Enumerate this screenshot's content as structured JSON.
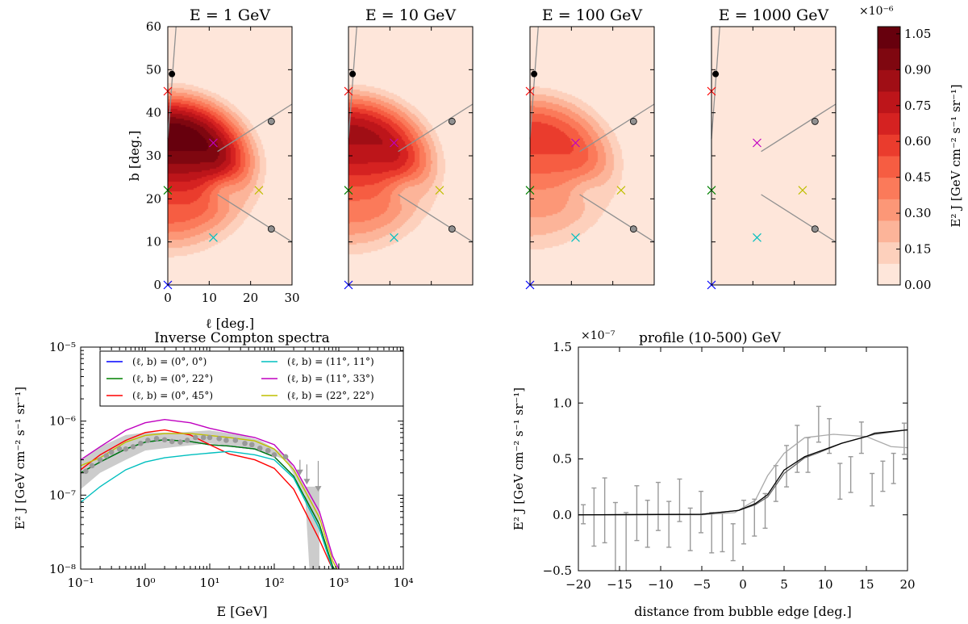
{
  "chart_data": [
    {
      "type": "heatmap",
      "panels": [
        {
          "title": "E = 1 GeV",
          "peak": 1.08
        },
        {
          "title": "E = 10 GeV",
          "peak": 0.86
        },
        {
          "title": "E = 100 GeV",
          "peak": 0.6
        },
        {
          "title": "E = 1000 GeV",
          "peak": 0.02
        }
      ],
      "xlabel": "ℓ [deg.]",
      "ylabel": "b [deg.]",
      "xlim": [
        0,
        30
      ],
      "ylim": [
        0,
        60
      ],
      "xticks": [
        "0",
        "10",
        "20",
        "30"
      ],
      "yticks": [
        "0",
        "10",
        "20",
        "30",
        "40",
        "50",
        "60"
      ],
      "colorbar": {
        "label": "E² J [GeV cm⁻² s⁻¹ sr⁻¹]",
        "multiplier": "×10⁻⁶",
        "ticks": [
          "0.00",
          "0.15",
          "0.30",
          "0.45",
          "0.60",
          "0.75",
          "0.90",
          "1.05"
        ],
        "range": [
          0,
          1.08
        ],
        "colormap": [
          "#fee6da",
          "#fdd0bc",
          "#fcb499",
          "#fc9777",
          "#fb7a5a",
          "#f65d42",
          "#ea3c2d",
          "#d52221",
          "#bd151a",
          "#a00e15",
          "#7f0710",
          "#67000d"
        ]
      },
      "markers": [
        {
          "l": 1,
          "b": 49,
          "kind": "dot",
          "color": "#000000"
        },
        {
          "l": 25,
          "b": 38,
          "kind": "circle",
          "color": "#808080"
        },
        {
          "l": 25,
          "b": 13,
          "kind": "circle",
          "color": "#808080"
        },
        {
          "l": 11,
          "b": 33,
          "kind": "cross",
          "color": "#c000c0"
        },
        {
          "l": 0,
          "b": 22,
          "kind": "cross",
          "color": "#008000"
        },
        {
          "l": 22,
          "b": 22,
          "kind": "cross",
          "color": "#bfbf00"
        },
        {
          "l": 11,
          "b": 11,
          "kind": "cross",
          "color": "#00bfbf"
        },
        {
          "l": 0,
          "b": 45,
          "kind": "cross",
          "color": "#ff0000"
        },
        {
          "l": 0,
          "b": 0,
          "kind": "cross",
          "color": "#0000ff"
        }
      ],
      "lines": [
        [
          [
            0,
            34
          ],
          [
            2,
            60
          ]
        ],
        [
          [
            12,
            31
          ],
          [
            30,
            42
          ]
        ],
        [
          [
            12,
            21
          ],
          [
            30,
            10
          ]
        ]
      ]
    },
    {
      "type": "line",
      "title": "Inverse Compton spectra",
      "xlabel": "E [GeV]",
      "ylabel": "E² J [GeV cm⁻² s⁻¹ sr⁻¹]",
      "xscale": "log",
      "yscale": "log",
      "xlim": [
        0.1,
        10000
      ],
      "ylim": [
        1e-08,
        1e-05
      ],
      "xticks": [
        "10⁻¹",
        "10⁰",
        "10¹",
        "10²",
        "10³",
        "10⁴"
      ],
      "yticks": [
        "10⁻⁸",
        "10⁻⁷",
        "10⁻⁶",
        "10⁻⁵"
      ],
      "legend_position": "top",
      "x": [
        0.1,
        0.2,
        0.5,
        1,
        2,
        5,
        10,
        20,
        50,
        100,
        200,
        500,
        800,
        1000
      ],
      "series": [
        {
          "name": "(ℓ, b) = (0°, 0°)",
          "color": "#0000ff",
          "values": [
            2e-07,
            2.8e-07,
            4.2e-07,
            5.2e-07,
            5.6e-07,
            5.3e-07,
            4.8e-07,
            4.6e-07,
            4.2e-07,
            3.3e-07,
            1.8e-07,
            4e-08,
            1.1e-08,
            8e-09
          ]
        },
        {
          "name": "(ℓ, b) = (0°, 22°)",
          "color": "#008000",
          "values": [
            2e-07,
            2.8e-07,
            4.2e-07,
            5.2e-07,
            5.6e-07,
            5.3e-07,
            4.8e-07,
            4.6e-07,
            4.2e-07,
            3.3e-07,
            1.8e-07,
            4e-08,
            1.1e-08,
            8e-09
          ]
        },
        {
          "name": "(ℓ, b) = (0°, 45°)",
          "color": "#ff0000",
          "values": [
            2.2e-07,
            3.5e-07,
            5.5e-07,
            7e-07,
            7.6e-07,
            6.5e-07,
            4.8e-07,
            3.6e-07,
            3e-07,
            2.3e-07,
            1.2e-07,
            2.5e-08,
            1e-08,
            7e-09
          ]
        },
        {
          "name": "(ℓ, b) = (11°, 11°)",
          "color": "#00bfbf",
          "values": [
            8e-08,
            1.3e-07,
            2.2e-07,
            2.8e-07,
            3.2e-07,
            3.5e-07,
            3.7e-07,
            3.9e-07,
            3.5e-07,
            3e-07,
            1.7e-07,
            3.5e-08,
            1e-08,
            7e-09
          ]
        },
        {
          "name": "(ℓ, b) = (11°, 33°)",
          "color": "#c000c0",
          "values": [
            3e-07,
            4.5e-07,
            7.5e-07,
            9.5e-07,
            1.05e-06,
            9.5e-07,
            8e-07,
            7e-07,
            6e-07,
            4.8e-07,
            2.5e-07,
            6e-08,
            1.5e-08,
            1e-08
          ]
        },
        {
          "name": "(ℓ, b) = (22°, 22°)",
          "color": "#bfbf00",
          "values": [
            2.5e-07,
            3.2e-07,
            5.2e-07,
            6.4e-07,
            6.8e-07,
            6.8e-07,
            6.4e-07,
            6e-07,
            5.4e-07,
            4.2e-07,
            2.2e-07,
            5e-08,
            1.3e-08,
            9e-09
          ]
        }
      ],
      "data_points": {
        "color": "#999999",
        "x": [
          0.12,
          0.15,
          0.2,
          0.25,
          0.3,
          0.4,
          0.5,
          0.65,
          0.85,
          1.1,
          1.5,
          2,
          2.6,
          3.5,
          4.5,
          6,
          8,
          10,
          14,
          18,
          25,
          35,
          45,
          60,
          80,
          100,
          150
        ],
        "y": [
          2.1e-07,
          2.5e-07,
          3e-07,
          3.4e-07,
          3.8e-07,
          4.2e-07,
          4.2e-07,
          4.5e-07,
          5e-07,
          5.5e-07,
          5.8e-07,
          5.6e-07,
          5.3e-07,
          5.2e-07,
          5.5e-07,
          6e-07,
          6e-07,
          6e-07,
          5.8e-07,
          5.5e-07,
          5.5e-07,
          5e-07,
          4.8e-07,
          4.3e-07,
          4e-07,
          3.5e-07,
          3.3e-07
        ],
        "upper_limits": [
          {
            "x": 250,
            "y": 2e-07,
            "top": 3e-07
          },
          {
            "x": 320,
            "y": 1.5e-07,
            "top": 2.6e-07
          },
          {
            "x": 480,
            "y": 1.2e-07,
            "top": 2.9e-07
          }
        ],
        "band_x": [
          0.1,
          0.2,
          0.5,
          1,
          3,
          10,
          30,
          60,
          150,
          300,
          350,
          500
        ],
        "band_low": [
          1.2e-07,
          2e-07,
          3e-07,
          4e-07,
          4.5e-07,
          5e-07,
          4.5e-07,
          4e-07,
          3e-07,
          1e-07,
          1e-08,
          1e-08
        ],
        "band_high": [
          3e-07,
          4.5e-07,
          6.5e-07,
          7e-07,
          7e-07,
          7.5e-07,
          6.5e-07,
          5.5e-07,
          3.5e-07,
          1.3e-07,
          1.3e-07,
          1.3e-07
        ]
      }
    },
    {
      "type": "line",
      "title": "profile (10-500) GeV",
      "multiplier": "×10⁻⁷",
      "xlabel": "distance from bubble edge [deg.]",
      "ylabel": "E² J [GeV cm⁻² s⁻¹ sr⁻¹]",
      "xlim": [
        -20,
        20
      ],
      "ylim": [
        -0.5,
        1.5
      ],
      "xticks": [
        "−20",
        "−15",
        "−10",
        "−5",
        "0",
        "5",
        "10",
        "15",
        "20"
      ],
      "yticks": [
        "−0.5",
        "0.0",
        "0.5",
        "1.0",
        "1.5"
      ],
      "series": [
        {
          "color": "#aaaaaa",
          "x": [
            -20,
            -5,
            -1,
            1.5,
            3,
            5,
            7.5,
            11,
            15,
            18,
            20
          ],
          "values": [
            0,
            0,
            0.02,
            0.13,
            0.35,
            0.55,
            0.69,
            0.72,
            0.7,
            0.61,
            0.6
          ]
        },
        {
          "color": "#666666",
          "x": [
            -20,
            -5,
            -0.5,
            1.5,
            3,
            5,
            7.5,
            9,
            12,
            15,
            16,
            20
          ],
          "values": [
            0,
            0.005,
            0.04,
            0.09,
            0.16,
            0.37,
            0.51,
            0.55,
            0.64,
            0.7,
            0.72,
            0.76
          ]
        },
        {
          "color": "#000000",
          "x": [
            -20,
            -5,
            -0.5,
            1.5,
            3,
            5,
            7.5,
            9,
            12,
            15,
            16,
            20
          ],
          "values": [
            0,
            0.005,
            0.04,
            0.1,
            0.18,
            0.4,
            0.52,
            0.56,
            0.64,
            0.7,
            0.73,
            0.76
          ]
        }
      ],
      "errorbars": {
        "color": "#999999",
        "x": [
          -19.4,
          -18.1,
          -16.8,
          -15.5,
          -14.2,
          -12.9,
          -11.6,
          -10.3,
          -9.0,
          -7.7,
          -6.4,
          -5.1,
          -3.8,
          -2.5,
          -1.2,
          0.1,
          1.4,
          2.7,
          4.0,
          5.3,
          6.6,
          7.9,
          9.2,
          10.5,
          11.8,
          13.1,
          14.4,
          15.7,
          17.0,
          18.3,
          19.6
        ],
        "low": [
          -0.08,
          -0.28,
          -0.25,
          -0.8,
          -0.8,
          -0.23,
          -0.29,
          -0.14,
          -0.29,
          -0.06,
          -0.32,
          -0.16,
          -0.34,
          -0.33,
          -0.41,
          -0.26,
          -0.19,
          -0.12,
          0.12,
          0.25,
          0.38,
          0.38,
          0.65,
          0.55,
          0.14,
          0.2,
          0.55,
          0.08,
          0.21,
          0.28,
          0.54
        ],
        "high": [
          0.09,
          0.24,
          0.33,
          0.11,
          0.02,
          0.26,
          0.13,
          0.29,
          0.12,
          0.32,
          0.06,
          0.21,
          0.02,
          0.02,
          -0.08,
          0.13,
          0.14,
          0.19,
          0.44,
          0.62,
          0.8,
          0.69,
          0.97,
          0.86,
          0.46,
          0.52,
          0.83,
          0.37,
          0.48,
          0.55,
          0.82
        ]
      }
    }
  ]
}
